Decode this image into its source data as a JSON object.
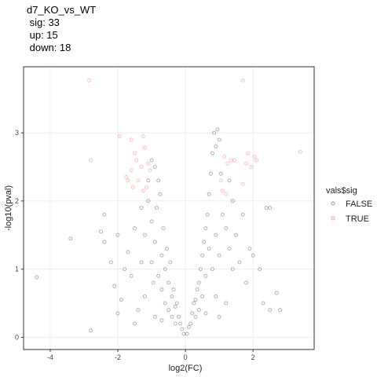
{
  "chart_data": {
    "type": "scatter",
    "title": "d7_KO_vs_WT",
    "subtitle": [
      " sig: 33",
      " up: 15",
      " down: 18"
    ],
    "x_label": "log2(FC)",
    "y_label": "-log10(pval)",
    "legend_title": "vals$sig",
    "legend_position": "right",
    "grid": true,
    "xlim": [
      -4.79,
      3.81
    ],
    "ylim": [
      -0.18,
      3.97
    ],
    "xticks": [
      -4,
      -2,
      0,
      2
    ],
    "yticks": [
      0,
      1,
      2,
      3
    ],
    "series": [
      {
        "name": "FALSE",
        "color": "#000000",
        "x": [
          -4.4,
          -3.4,
          -2.4,
          -2.5,
          -2.4,
          -2.0,
          -2.2,
          -2.1,
          -1.9,
          -2.0,
          -1.7,
          -1.8,
          -1.6,
          -1.5,
          -1.3,
          -1.0,
          -0.9,
          -0.8,
          -1.1,
          -1.2,
          -1.0,
          -0.9,
          -0.85,
          -0.75,
          -0.7,
          -0.65,
          -0.6,
          -0.55,
          -0.5,
          -0.45,
          -0.4,
          -0.35,
          -0.3,
          -0.25,
          -0.2,
          -0.15,
          -0.1,
          -0.05,
          -0.6,
          -0.5,
          -0.4,
          -0.3,
          -0.8,
          -0.7,
          -1.0,
          -1.2,
          -1.4,
          -0.9,
          -0.7,
          -1.1,
          -0.95,
          -1.3,
          -2.8,
          -1.5,
          0.05,
          0.1,
          0.15,
          0.2,
          0.25,
          0.3,
          0.35,
          0.4,
          0.45,
          0.5,
          0.55,
          0.6,
          0.65,
          0.7,
          0.75,
          0.8,
          0.85,
          0.95,
          0.9,
          1.0,
          0.7,
          0.6,
          0.5,
          0.4,
          0.3,
          0.8,
          0.9,
          1.0,
          1.1,
          1.2,
          1.3,
          1.4,
          1.5,
          1.7,
          1.6,
          1.8,
          2.0,
          2.2,
          2.3,
          2.5,
          2.7,
          2.8,
          2.4,
          2.5,
          1.9,
          1.3,
          1.4,
          1.05,
          0.6,
          0.9,
          1.2,
          1.0
        ],
        "values": [
          0.88,
          1.45,
          1.8,
          1.55,
          1.4,
          1.5,
          1.1,
          0.75,
          0.55,
          0.35,
          1.25,
          1.0,
          0.9,
          1.6,
          1.9,
          2.6,
          2.5,
          2.3,
          2.0,
          1.5,
          1.7,
          1.4,
          1.9,
          2.1,
          1.2,
          1.6,
          1.0,
          1.3,
          0.8,
          1.1,
          0.6,
          0.7,
          0.45,
          0.5,
          0.3,
          0.2,
          0.12,
          0.05,
          0.5,
          0.4,
          0.3,
          0.2,
          0.9,
          0.7,
          1.1,
          0.6,
          0.4,
          0.3,
          0.25,
          2.3,
          0.8,
          1.1,
          0.1,
          0.2,
          0.05,
          0.15,
          0.2,
          0.35,
          0.5,
          0.55,
          0.7,
          0.8,
          1.0,
          1.2,
          1.4,
          1.6,
          1.8,
          2.1,
          2.4,
          2.7,
          3.0,
          3.05,
          2.8,
          2.9,
          1.3,
          0.9,
          0.6,
          0.4,
          0.3,
          1.0,
          1.5,
          1.2,
          1.8,
          1.6,
          1.3,
          1.0,
          1.5,
          1.8,
          1.1,
          0.8,
          1.2,
          1.0,
          0.5,
          0.4,
          0.65,
          0.4,
          1.9,
          1.9,
          1.3,
          2.3,
          2.0,
          2.4,
          0.35,
          0.6,
          0.5,
          0.3
        ]
      },
      {
        "name": "TRUE",
        "color": "#ff0000",
        "x": [
          -2.85,
          -1.95,
          -1.6,
          -1.25,
          -1.2,
          -2.8,
          -1.5,
          -1.75,
          -1.7,
          -1.4,
          -1.55,
          -1.1,
          -1.15,
          -1.25,
          -1.6,
          -1.3,
          -1.05,
          -1.45,
          1.7,
          3.4,
          1.85,
          2.05,
          2.1,
          1.8,
          1.45,
          1.15,
          1.25,
          1.7,
          1.2,
          1.1,
          1.35,
          1.05,
          1.95
        ],
        "values": [
          3.77,
          2.95,
          2.9,
          2.95,
          2.78,
          2.6,
          2.7,
          2.35,
          2.3,
          2.3,
          2.2,
          2.55,
          2.2,
          2.15,
          2.45,
          2.5,
          2.45,
          2.6,
          3.77,
          2.72,
          2.7,
          2.65,
          2.6,
          2.55,
          2.6,
          2.65,
          2.55,
          2.25,
          2.1,
          2.15,
          2.6,
          2.3,
          2.5
        ]
      }
    ]
  }
}
